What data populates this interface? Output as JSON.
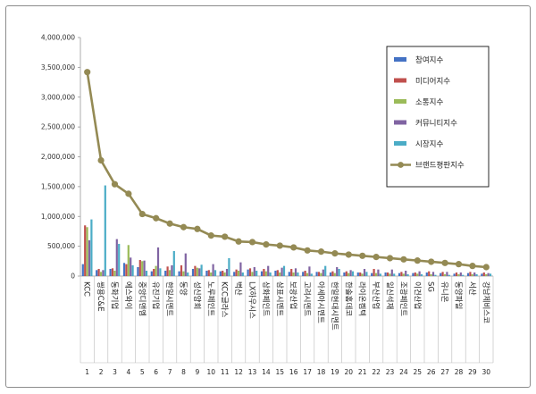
{
  "chart_data": {
    "type": "bar",
    "title": "",
    "xlabel": "",
    "ylabel": "",
    "ylim": [
      0,
      4000000
    ],
    "yticks": [
      "0",
      "500,000",
      "1,000,000",
      "1,500,000",
      "2,000,000",
      "2,500,000",
      "3,000,000",
      "3,500,000",
      "4,000,000"
    ],
    "legend_position": "top-right",
    "categories": [
      "KCC",
      "쌍용C&E",
      "동화기업",
      "에스와이",
      "중앙디앤엠",
      "유진기업",
      "한일시멘트",
      "동양",
      "성신양회",
      "노루페인트",
      "KCC글라스",
      "벽산",
      "LX하우시스",
      "삼화페인트",
      "삼표시멘트",
      "보광산업",
      "고려시멘트",
      "아세아시멘트",
      "한일현대시멘트",
      "한솔홈데코",
      "라이온켐텍",
      "부산산업",
      "일신석재",
      "조광페인트",
      "이건산업",
      "SG",
      "유니온",
      "동양파일",
      "서산",
      "강남제비스코"
    ],
    "ranks": [
      "1",
      "2",
      "3",
      "4",
      "5",
      "6",
      "7",
      "8",
      "9",
      "10",
      "11",
      "12",
      "13",
      "14",
      "15",
      "16",
      "17",
      "18",
      "19",
      "20",
      "21",
      "22",
      "23",
      "24",
      "25",
      "26",
      "27",
      "28",
      "29",
      "30"
    ],
    "series": [
      {
        "name": "참여지수",
        "kind": "bar",
        "color": "#4472c4",
        "values": [
          200000,
          100000,
          120000,
          220000,
          150000,
          80000,
          90000,
          80000,
          120000,
          90000,
          80000,
          70000,
          110000,
          80000,
          90000,
          70000,
          70000,
          70000,
          60000,
          60000,
          60000,
          50000,
          60000,
          50000,
          50000,
          60000,
          50000,
          40000,
          50000,
          40000
        ]
      },
      {
        "name": "미디어지수",
        "kind": "bar",
        "color": "#c0504d",
        "values": [
          850000,
          120000,
          130000,
          200000,
          270000,
          120000,
          160000,
          180000,
          170000,
          100000,
          90000,
          110000,
          130000,
          120000,
          100000,
          120000,
          90000,
          70000,
          80000,
          80000,
          60000,
          120000,
          60000,
          70000,
          60000,
          80000,
          70000,
          60000,
          70000,
          60000
        ]
      },
      {
        "name": "소통지수",
        "kind": "bar",
        "color": "#9bbb59",
        "values": [
          820000,
          70000,
          90000,
          520000,
          250000,
          170000,
          100000,
          80000,
          140000,
          60000,
          60000,
          90000,
          70000,
          80000,
          60000,
          60000,
          50000,
          50000,
          50000,
          50000,
          40000,
          50000,
          40000,
          40000,
          40000,
          30000,
          30000,
          30000,
          30000,
          30000
        ]
      },
      {
        "name": "커뮤니티지수",
        "kind": "bar",
        "color": "#8064a2",
        "values": [
          600000,
          100000,
          620000,
          310000,
          260000,
          480000,
          180000,
          380000,
          130000,
          200000,
          120000,
          230000,
          150000,
          170000,
          140000,
          130000,
          160000,
          110000,
          150000,
          100000,
          120000,
          110000,
          110000,
          90000,
          80000,
          70000,
          70000,
          60000,
          60000,
          50000
        ]
      },
      {
        "name": "시장지수",
        "kind": "bar",
        "color": "#4bacc6",
        "values": [
          950000,
          1520000,
          540000,
          180000,
          90000,
          130000,
          420000,
          60000,
          190000,
          100000,
          300000,
          60000,
          90000,
          60000,
          170000,
          60000,
          40000,
          170000,
          120000,
          80000,
          70000,
          40000,
          40000,
          30000,
          30000,
          20000,
          20000,
          20000,
          30000,
          40000
        ]
      },
      {
        "name": "브랜드평판지수",
        "kind": "line",
        "color": "#948a54",
        "values": [
          3420000,
          1940000,
          1540000,
          1380000,
          1040000,
          970000,
          880000,
          820000,
          790000,
          680000,
          660000,
          580000,
          570000,
          530000,
          510000,
          480000,
          430000,
          410000,
          380000,
          360000,
          340000,
          320000,
          300000,
          280000,
          260000,
          240000,
          220000,
          200000,
          170000,
          150000
        ]
      }
    ]
  }
}
